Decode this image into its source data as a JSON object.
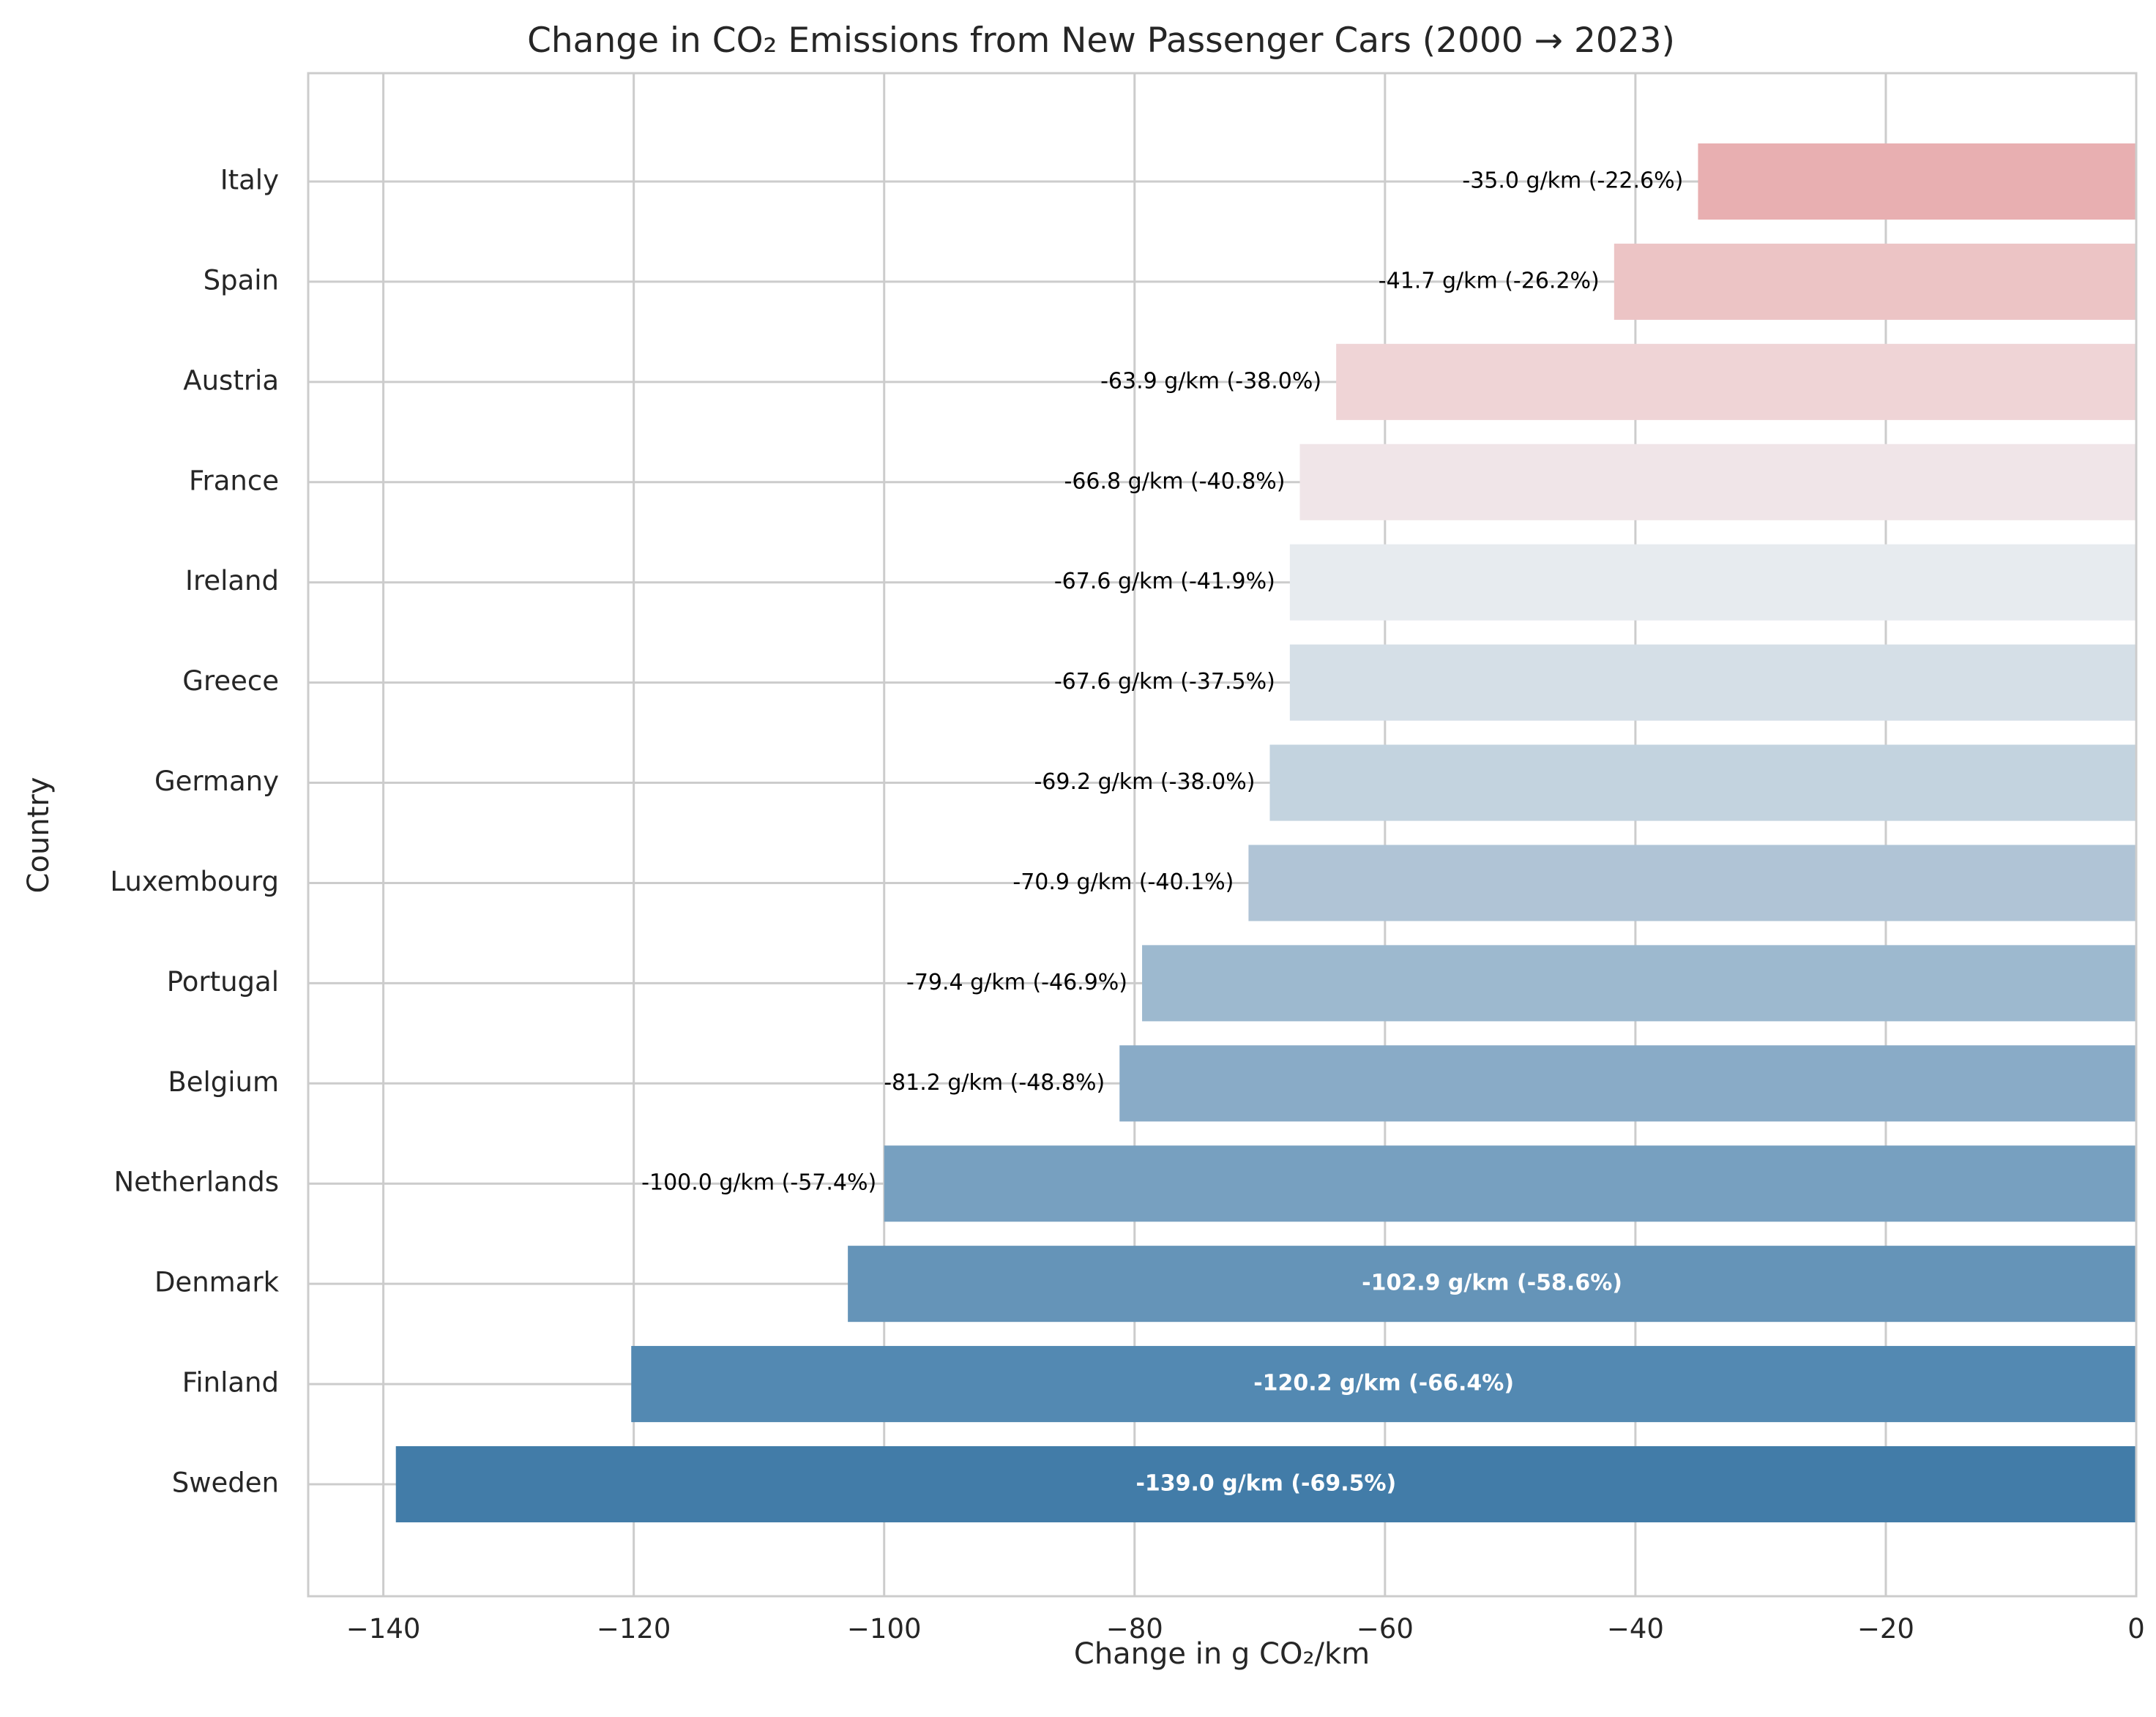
{
  "chart_data": {
    "type": "bar",
    "orientation": "horizontal",
    "title": "Change in CO₂ Emissions from New Passenger Cars (2000 → 2023)",
    "xlabel": "Change in g CO₂/km",
    "ylabel": "Country",
    "xlim": [
      -146,
      0
    ],
    "xticks": [
      -140,
      -120,
      -100,
      -80,
      -60,
      -40,
      -20,
      0
    ],
    "xtick_labels": [
      "−140",
      "−120",
      "−100",
      "−80",
      "−60",
      "−40",
      "−20",
      "0"
    ],
    "grid": true,
    "categories": [
      "Italy",
      "Spain",
      "Austria",
      "France",
      "Ireland",
      "Greece",
      "Germany",
      "Luxembourg",
      "Portugal",
      "Belgium",
      "Netherlands",
      "Denmark",
      "Finland",
      "Sweden"
    ],
    "values": [
      -35.0,
      -41.7,
      -63.9,
      -66.8,
      -67.6,
      -67.6,
      -69.2,
      -70.9,
      -79.4,
      -81.2,
      -100.0,
      -102.9,
      -120.2,
      -139.0
    ],
    "data_labels": [
      "-35.0 g/km (-22.6%)",
      "-41.7 g/km (-26.2%)",
      "-63.9 g/km (-38.0%)",
      "-66.8 g/km (-40.8%)",
      "-67.6 g/km (-41.9%)",
      "-67.6 g/km (-37.5%)",
      "-69.2 g/km (-38.0%)",
      "-70.9 g/km (-40.1%)",
      "-79.4 g/km (-46.9%)",
      "-81.2 g/km (-48.8%)",
      "-100.0 g/km (-57.4%)",
      "-102.9 g/km (-58.6%)",
      "-120.2 g/km (-66.4%)",
      "-139.0 g/km (-69.5%)"
    ],
    "label_inside_bar": [
      false,
      false,
      false,
      false,
      false,
      false,
      false,
      false,
      false,
      false,
      false,
      true,
      true,
      true
    ],
    "colors": [
      "#e8afb1",
      "#ecc4c5",
      "#efd4d6",
      "#f0e5e8",
      "#e7ebef",
      "#d5dfe7",
      "#c3d3df",
      "#b0c4d6",
      "#9db9cf",
      "#89abc7",
      "#77a0c0",
      "#6594b8",
      "#5389b2",
      "#427ca8"
    ]
  }
}
